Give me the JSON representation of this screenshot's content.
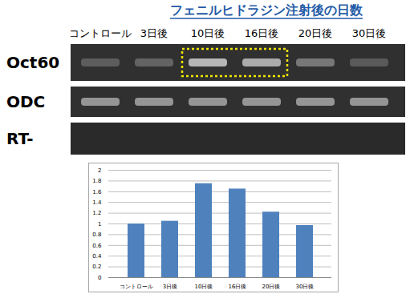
{
  "chart_data": {
    "type": "bar",
    "categories": [
      "コントロール",
      "3日後",
      "10日後",
      "16日後",
      "20日後",
      "30日後"
    ],
    "values": [
      1.0,
      1.05,
      1.75,
      1.65,
      1.22,
      0.97
    ],
    "color": "#4f81bd",
    "ylim": [
      0,
      2
    ],
    "yticks": [
      0,
      0.2,
      0.4,
      0.6,
      0.8,
      1,
      1.2,
      1.4,
      1.6,
      1.8,
      2
    ],
    "grid": true
  },
  "gel": {
    "title": "フェニルヒドラジン注射後の日数",
    "lanes": [
      "コントロール",
      "3日後",
      "10日後",
      "16日後",
      "20日後",
      "30日後"
    ],
    "rows": [
      "Oct60",
      "ODC",
      "RT-"
    ]
  }
}
